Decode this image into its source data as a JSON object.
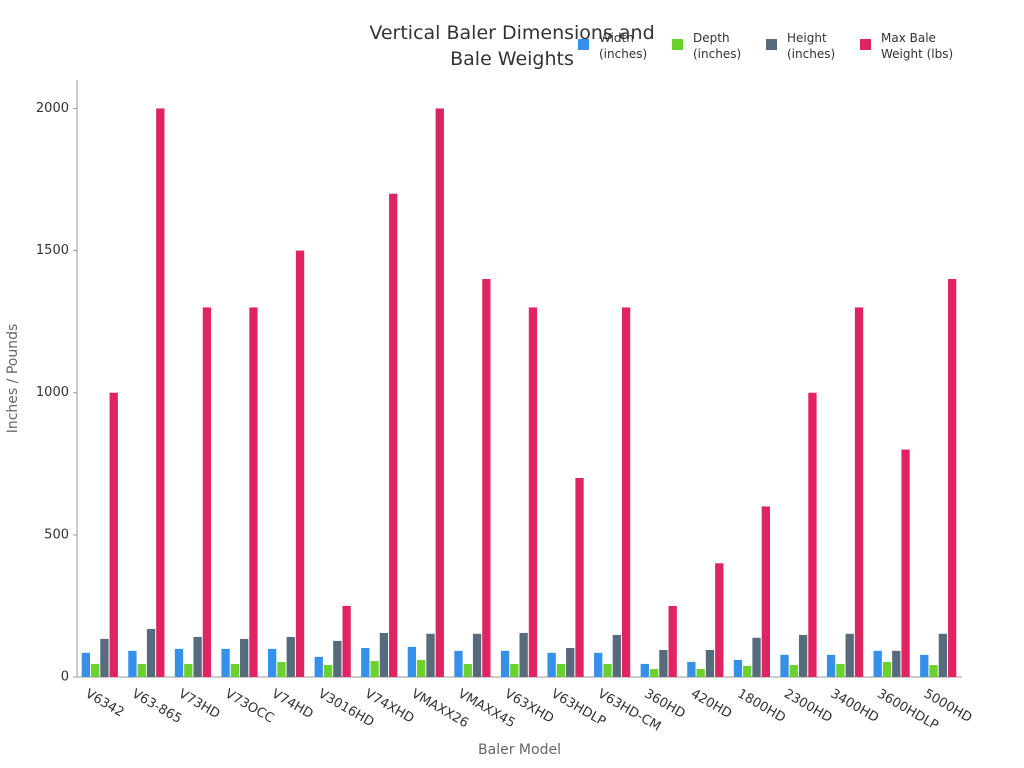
{
  "chart_data": {
    "type": "bar",
    "title": "Vertical Baler Dimensions and Bale Weights",
    "x_label": "Baler Model",
    "y_label": "Inches / Pounds",
    "categories": [
      "V6342",
      "V63-865",
      "V73HD",
      "V73OCC",
      "V74HD",
      "V3016HD",
      "V74XHD",
      "VMAXX26",
      "VMAXX45",
      "V63XHD",
      "V63HDLP",
      "V63HD-CM",
      "360HD",
      "420HD",
      "1800HD",
      "2300HD",
      "3400HD",
      "3600HDLP",
      "5000HD"
    ],
    "series": [
      {
        "name": "Width (inches)",
        "color": "#3590ea",
        "values": [
          85,
          92,
          99,
          99,
          99,
          71,
          102,
          106,
          92,
          92,
          85,
          85,
          46,
          53,
          60,
          78,
          78,
          92,
          78
        ]
      },
      {
        "name": "Depth (inches)",
        "color": "#6bd12c",
        "values": [
          46,
          46,
          46,
          46,
          53,
          42,
          56,
          60,
          46,
          46,
          46,
          46,
          28,
          28,
          39,
          42,
          46,
          53,
          42
        ]
      },
      {
        "name": "Height (inches)",
        "color": "#566b7c",
        "values": [
          134,
          169,
          141,
          134,
          141,
          127,
          155,
          152,
          152,
          155,
          102,
          148,
          95,
          95,
          138,
          148,
          152,
          92,
          152
        ]
      },
      {
        "name": "Max Bale Weight (lbs)",
        "color": "#e02462",
        "values": [
          1000,
          2000,
          1300,
          1300,
          1500,
          250,
          1700,
          2000,
          1400,
          1300,
          700,
          1300,
          250,
          400,
          600,
          1000,
          1300,
          800,
          1400
        ]
      }
    ],
    "ylim": [
      0,
      2100
    ],
    "yticks": [
      0,
      500,
      1000,
      1500,
      2000
    ],
    "grid": false
  }
}
